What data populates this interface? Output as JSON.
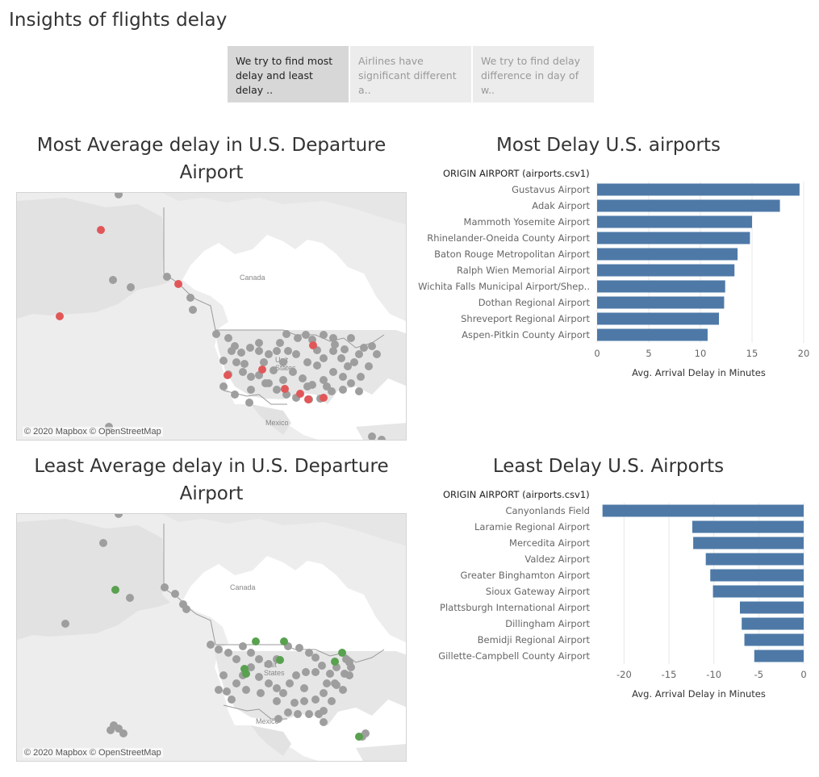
{
  "dashboard": {
    "title": "Insights of flights delay"
  },
  "story_points": [
    {
      "text": "We try to find most delay and least delay ..",
      "active": true
    },
    {
      "text": "Airlines have significant different a..",
      "active": false
    },
    {
      "text": "We try to find delay difference in day of w..",
      "active": false
    }
  ],
  "panels": {
    "most_map": {
      "title_line1": "Most Average delay in U.S. Departure",
      "title_line2": "Airport",
      "credit": "© 2020 Mapbox © OpenStreetMap",
      "labels": {
        "canada": "Canada",
        "united_states_1": "Unit",
        "united_states_2": "States",
        "mexico": "Mexico"
      },
      "highlight_color": "#e15759"
    },
    "most_chart": {
      "title": "Most Delay U.S. airports"
    },
    "least_map": {
      "title_line1": "Least Average delay in U.S. Departure",
      "title_line2": "Airport",
      "credit": "© 2020 Mapbox © OpenStreetMap",
      "labels": {
        "canada": "Canada",
        "united_states_1": "Unit",
        "united_states_2": "States",
        "mexico": "Mexico"
      },
      "highlight_color": "#59a14f"
    },
    "least_chart": {
      "title": "Least Delay U.S. Airports"
    }
  },
  "colors": {
    "bar": "#4e79a7",
    "neutral_dot": "#9e9e9e",
    "land": "#ededed",
    "water": "#ffffff"
  },
  "chart_data": [
    {
      "type": "bar",
      "orientation": "horizontal",
      "title": "Most Delay U.S. airports",
      "row_header": "ORIGIN AIRPORT (airports.csv1)",
      "xlabel": "Avg. Arrival Delay in Minutes",
      "categories": [
        "Gustavus Airport",
        "Adak Airport",
        "Mammoth Yosemite Airport",
        "Rhinelander-Oneida County Airport",
        "Baton Rouge Metropolitan Airport",
        "Ralph Wien Memorial Airport",
        "Wichita Falls Municipal Airport/Shep..",
        "Dothan Regional Airport",
        "Shreveport Regional Airport",
        "Aspen-Pitkin County Airport"
      ],
      "values": [
        19.6,
        17.7,
        15.0,
        14.8,
        13.6,
        13.3,
        12.4,
        12.3,
        11.8,
        10.7
      ],
      "xlim": [
        0,
        20
      ],
      "xticks": [
        0,
        5,
        10,
        15,
        20
      ]
    },
    {
      "type": "bar",
      "orientation": "horizontal",
      "title": "Least Delay U.S. Airports",
      "row_header": "ORIGIN AIRPORT (airports.csv1)",
      "xlabel": "Avg. Arrival Delay in Minutes",
      "categories": [
        "Canyonlands Field",
        "Laramie Regional Airport",
        "Mercedita Airport",
        "Valdez Airport",
        "Greater Binghamton Airport",
        "Sioux Gateway Airport",
        "Plattsburgh International Airport",
        "Dillingham Airport",
        "Bemidji Regional Airport",
        "Gillette-Campbell County Airport"
      ],
      "values": [
        -22.4,
        -12.4,
        -12.3,
        -10.9,
        -10.4,
        -10.1,
        -7.1,
        -6.9,
        -6.6,
        -5.5
      ],
      "xlim": [
        -23,
        0
      ],
      "xticks": [
        -20,
        -15,
        -10,
        -5,
        0
      ]
    }
  ]
}
